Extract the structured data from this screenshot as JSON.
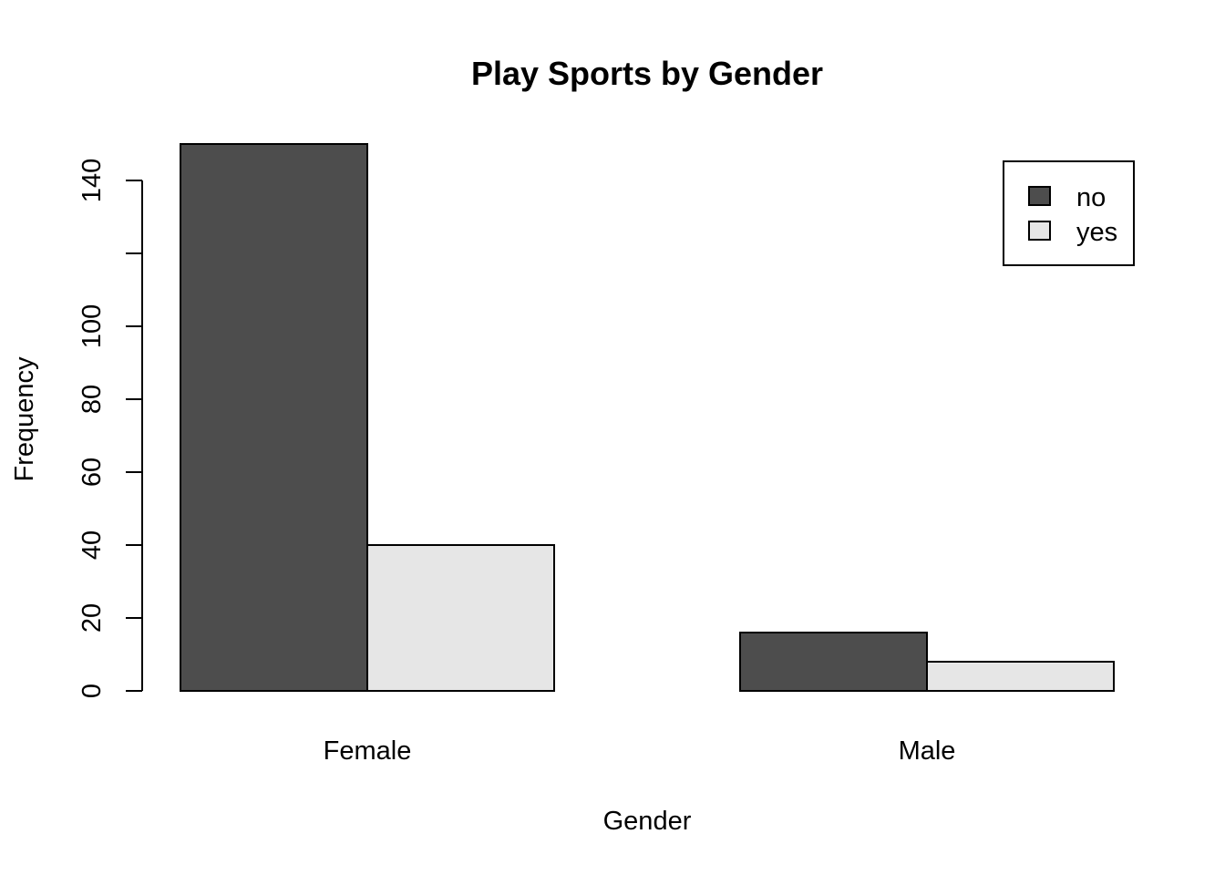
{
  "chart_data": {
    "type": "bar",
    "title": "Play Sports by Gender",
    "xlabel": "Gender",
    "ylabel": "Frequency",
    "categories": [
      "Female",
      "Male"
    ],
    "series": [
      {
        "name": "no",
        "values": [
          150,
          16
        ],
        "color": "#4d4d4d"
      },
      {
        "name": "yes",
        "values": [
          40,
          8
        ],
        "color": "#e6e6e6"
      }
    ],
    "yticks": [
      0,
      20,
      40,
      60,
      80,
      100,
      120,
      140
    ],
    "ytick_labels": [
      "0",
      "20",
      "40",
      "60",
      "80",
      "100",
      "",
      "140"
    ],
    "ylim": [
      0,
      150
    ],
    "grid": false,
    "legend_position": "top-right",
    "barmode": "grouped"
  }
}
